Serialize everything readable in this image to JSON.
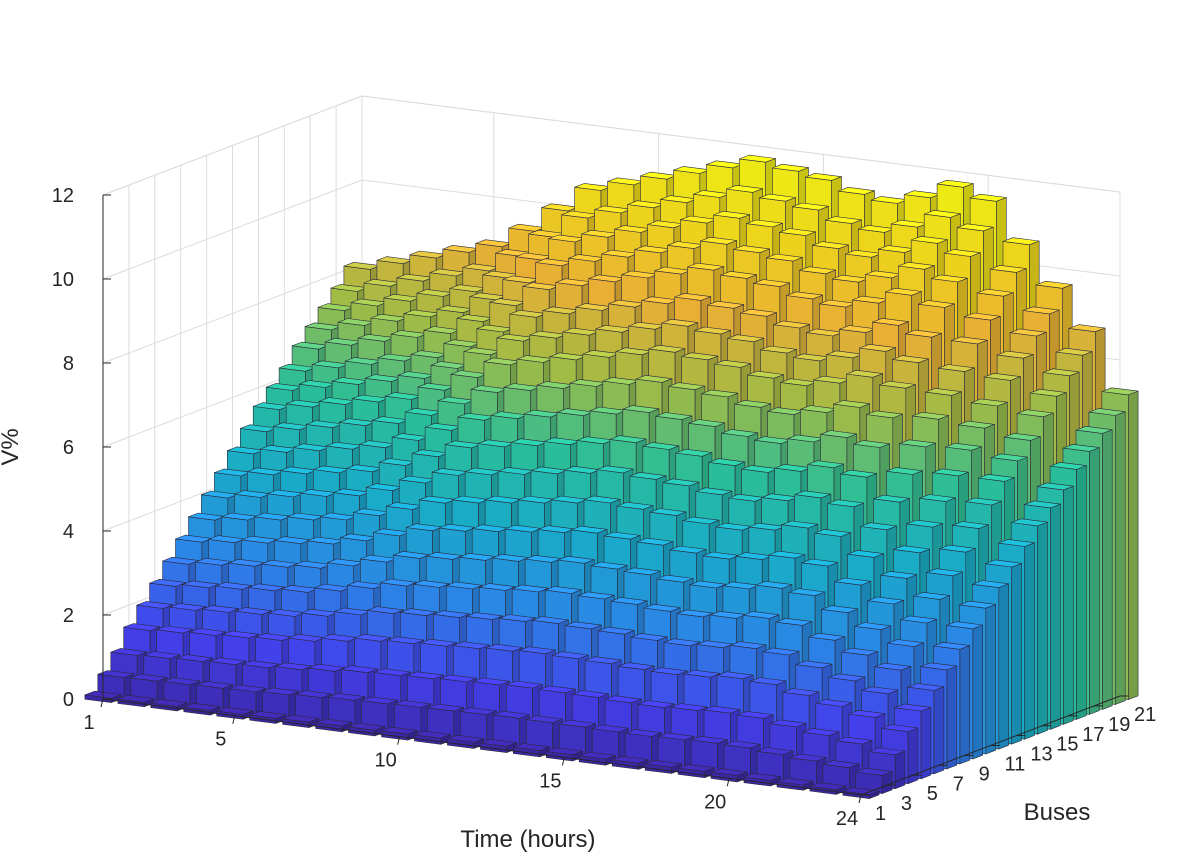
{
  "chart_data": {
    "type": "bar3",
    "xlabel": "Time (hours)",
    "ylabel": "Buses",
    "zlabel": "V%",
    "x_ticks": [
      1,
      5,
      10,
      15,
      20,
      24
    ],
    "y_ticks": [
      1,
      3,
      5,
      7,
      9,
      11,
      13,
      15,
      17,
      19,
      21
    ],
    "z_ticks": [
      0,
      2,
      4,
      6,
      8,
      10,
      12
    ],
    "xlim": [
      1,
      24
    ],
    "ylim": [
      1,
      21
    ],
    "zlim": [
      0,
      12
    ],
    "grid": true,
    "colormap": "parula",
    "colormap_stops": [
      "#3e26a8",
      "#4743f8",
      "#2d8ef2",
      "#1ab4d3",
      "#2cc8a0",
      "#a8c549",
      "#f5b838",
      "#f9e01c",
      "#f9fb15"
    ],
    "times": [
      1,
      2,
      3,
      4,
      5,
      6,
      7,
      8,
      9,
      10,
      11,
      12,
      13,
      14,
      15,
      16,
      17,
      18,
      19,
      20,
      21,
      22,
      23,
      24
    ],
    "buses": [
      1,
      2,
      3,
      4,
      5,
      6,
      7,
      8,
      9,
      10,
      11,
      12,
      13,
      14,
      15,
      16,
      17,
      18,
      19,
      20,
      21
    ],
    "time_profile": [
      0.68,
      0.7,
      0.72,
      0.74,
      0.76,
      0.8,
      0.85,
      0.9,
      0.92,
      0.94,
      0.96,
      0.98,
      1.0,
      0.99,
      0.98,
      0.96,
      0.95,
      0.97,
      1.0,
      0.98,
      0.9,
      0.82,
      0.74,
      0.62
    ],
    "bus_max_voltage_drop": [
      0.15,
      0.7,
      1.3,
      2.0,
      2.6,
      3.2,
      3.8,
      4.4,
      5.0,
      5.6,
      6.2,
      6.8,
      7.4,
      8.0,
      8.5,
      9.0,
      9.6,
      10.1,
      10.6,
      11.1,
      11.7
    ]
  }
}
